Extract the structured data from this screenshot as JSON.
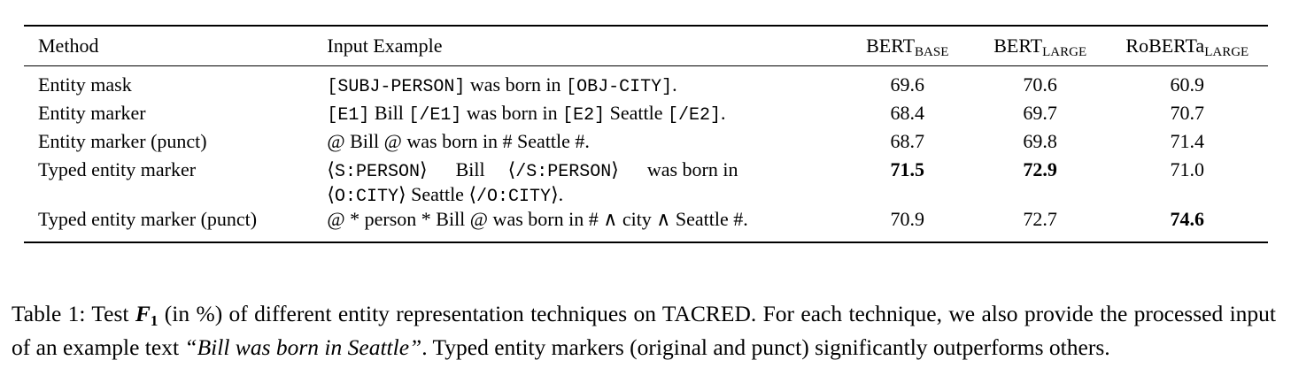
{
  "table": {
    "headers": {
      "method": "Method",
      "input": "Input Example",
      "bert_base": "BERT",
      "bert_base_sub": "BASE",
      "bert_large": "BERT",
      "bert_large_sub": "LARGE",
      "roberta_large": "RoBERTa",
      "roberta_large_sub": "LARGE"
    },
    "rows": [
      {
        "method": "Entity mask",
        "input_parts": [
          "[SUBJ-PERSON]",
          " was born in ",
          "[OBJ-CITY]",
          "."
        ],
        "bert_base": "69.6",
        "bert_large": "70.6",
        "roberta_large": "60.9"
      },
      {
        "method": "Entity marker",
        "input_parts": [
          "[E1]",
          " Bill ",
          "[/E1]",
          " was born in ",
          "[E2]",
          " Seattle ",
          "[/E2]",
          "."
        ],
        "bert_base": "68.4",
        "bert_large": "69.7",
        "roberta_large": "70.7"
      },
      {
        "method": "Entity marker (punct)",
        "input_text": "@ Bill @ was born in # Seattle #.",
        "bert_base": "68.7",
        "bert_large": "69.8",
        "roberta_large": "71.4"
      },
      {
        "method": "Typed entity marker",
        "input_line1_parts": [
          "⟨",
          "S:PERSON",
          "⟩",
          "Bill",
          "⟨",
          "/S:PERSON",
          "⟩",
          "was born in"
        ],
        "input_line2_parts": [
          "⟨",
          "O:CITY",
          "⟩",
          " Seattle ",
          "⟨",
          "/O:CITY",
          "⟩",
          "."
        ],
        "bert_base": "71.5",
        "bert_large": "72.9",
        "roberta_large": "71.0"
      },
      {
        "method": "Typed entity marker (punct)",
        "input_text": "@ * person * Bill @ was born in # ∧ city ∧ Seattle #.",
        "bert_base": "70.9",
        "bert_large": "72.7",
        "roberta_large": "74.6"
      }
    ]
  },
  "caption": {
    "label": "Table 1: Test ",
    "metric": "F",
    "metric_sub": "1",
    "part1": " (in %) of different entity representation techniques on TACRED. For each technique, we also provide the processed input of an example text ",
    "example": "“Bill was born in Seattle”",
    "part2": ". Typed entity markers (original and punct) significantly outperforms others."
  }
}
